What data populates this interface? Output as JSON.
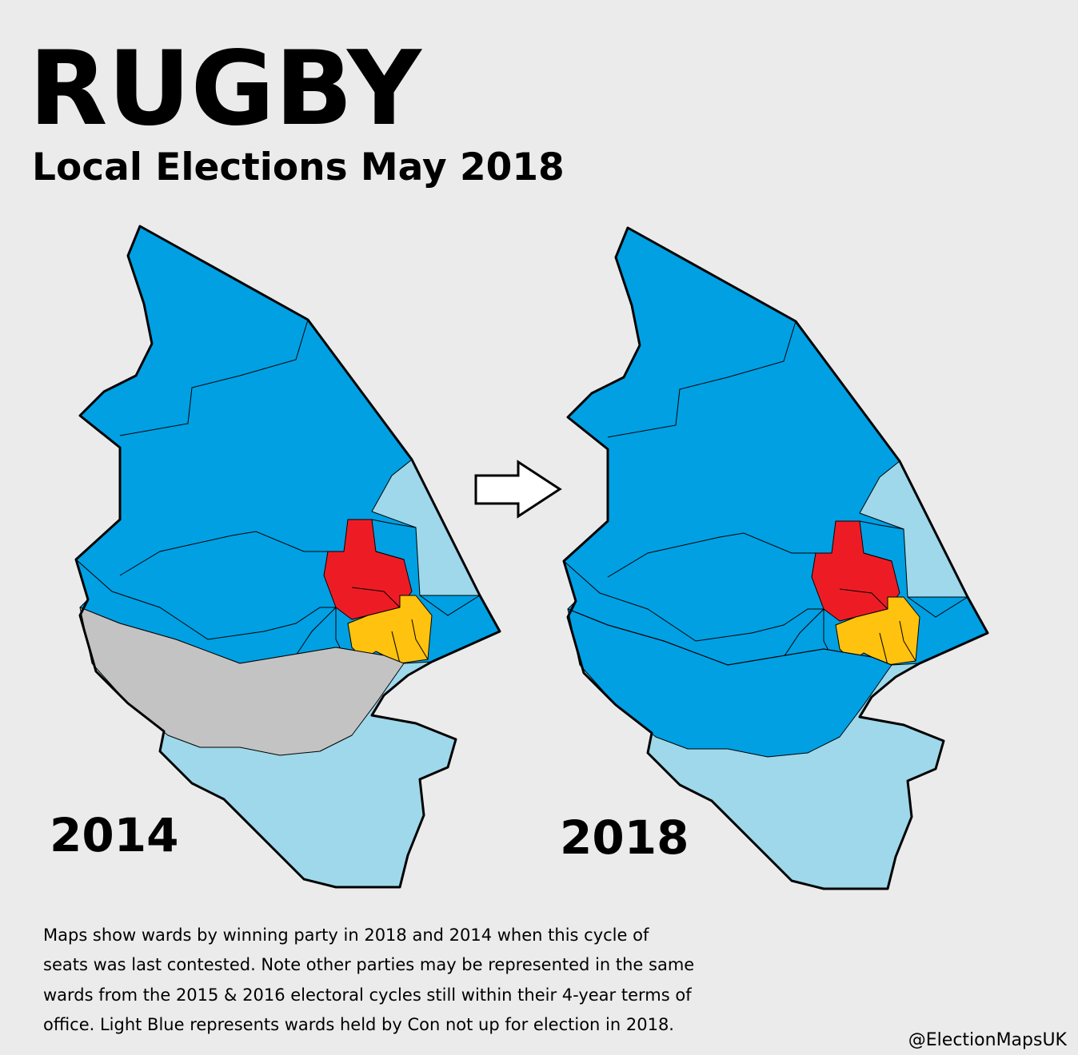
{
  "title": "RUGBY",
  "subtitle": "Local Elections May 2018",
  "maps": [
    {
      "label": "2014"
    },
    {
      "label": "2018"
    }
  ],
  "note": [
    "Maps show wards by winning party in 2018 and 2014 when this cycle of",
    "seats was last contested. Note other parties may be represented in the same",
    "wards from the 2015 & 2016 electoral cycles still within their 4-year terms of",
    "office. Light Blue represents wards held by Con not up for election in 2018."
  ],
  "credit": "@ElectionMapsUK"
}
